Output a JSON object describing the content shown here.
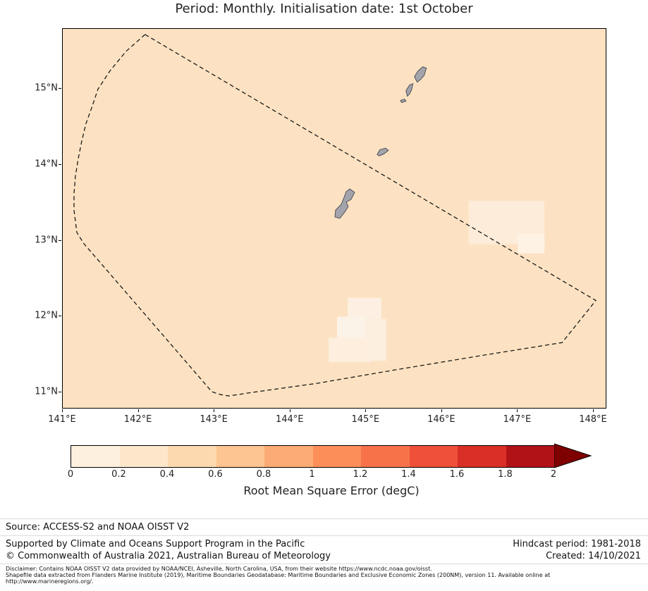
{
  "title": "Period: Monthly. Initialisation date: 1st October",
  "map": {
    "background_color": "#fce2c2",
    "x_ticks": [
      "141°E",
      "142°E",
      "143°E",
      "144°E",
      "145°E",
      "146°E",
      "147°E",
      "148°E"
    ],
    "y_ticks": [
      "15°N",
      "14°N",
      "13°N",
      "12°N",
      "11°N"
    ]
  },
  "colorbar": {
    "label": "Root Mean Square Error (degC)",
    "ticks": [
      "0",
      "0.2",
      "0.4",
      "0.6",
      "0.8",
      "1",
      "1.2",
      "1.4",
      "1.6",
      "1.8",
      "2"
    ],
    "segments": [
      "#fdf0de",
      "#fde7cb",
      "#fdd9b0",
      "#fdc591",
      "#fcab74",
      "#fc8e5a",
      "#f77249",
      "#ee5039",
      "#d92f26",
      "#b11218"
    ],
    "arrow_color": "#7f0000",
    "extend": "max"
  },
  "footer": {
    "source": "Source: ACCESS-S2 and NOAA OISST V2",
    "supported": "Supported by Climate and Oceans Support Program in the Pacific",
    "copyright": "© Commonwealth of Australia 2021, Australian Bureau of Meteorology",
    "hindcast": "Hindcast period: 1981-2018",
    "created": "Created: 14/10/2021",
    "disclaimer_lines": [
      "Disclaimer: Contains NOAA OISST V2 data provided by NOAA/NCEI, Asheville, North Carolina, USA, from their website https://www.ncdc.noaa.gov/oisst.",
      "Shapefile data extracted from Flanders Marine Institute (2019), Maritime Boundaries Geodatabase: Maritime Boundaries and Exclusive Economic Zones (200NM), version 11. Available online at",
      "http://www.marineregions.org/."
    ]
  },
  "chart_data": {
    "type": "heatmap",
    "title": "Period: Monthly. Initialisation date: 1st October",
    "value_label": "Root Mean Square Error (degC)",
    "x_ticks": [
      "141°E",
      "142°E",
      "143°E",
      "144°E",
      "145°E",
      "146°E",
      "147°E",
      "148°E"
    ],
    "y_ticks": [
      "11°N",
      "12°N",
      "13°N",
      "14°N",
      "15°N"
    ],
    "lon_range": [
      141,
      148.2
    ],
    "lat_range": [
      10.8,
      15.8
    ],
    "colorbar_ticks": [
      0,
      0.2,
      0.4,
      0.6,
      0.8,
      1,
      1.2,
      1.4,
      1.6,
      1.8,
      2
    ],
    "colorbar_extend": "max",
    "field_summary": "RMSE mostly 0.2-0.4 degC over the whole domain; lighter patches below 0.2 degC near 147°E 13-13.5°N and near 144.7-145.2°E 11.5-12.2°N",
    "overlays": [
      "Dashed EEZ boundary polygon",
      "Islands: Guam, Rota, Aguijan, Tinian, Saipan"
    ]
  }
}
